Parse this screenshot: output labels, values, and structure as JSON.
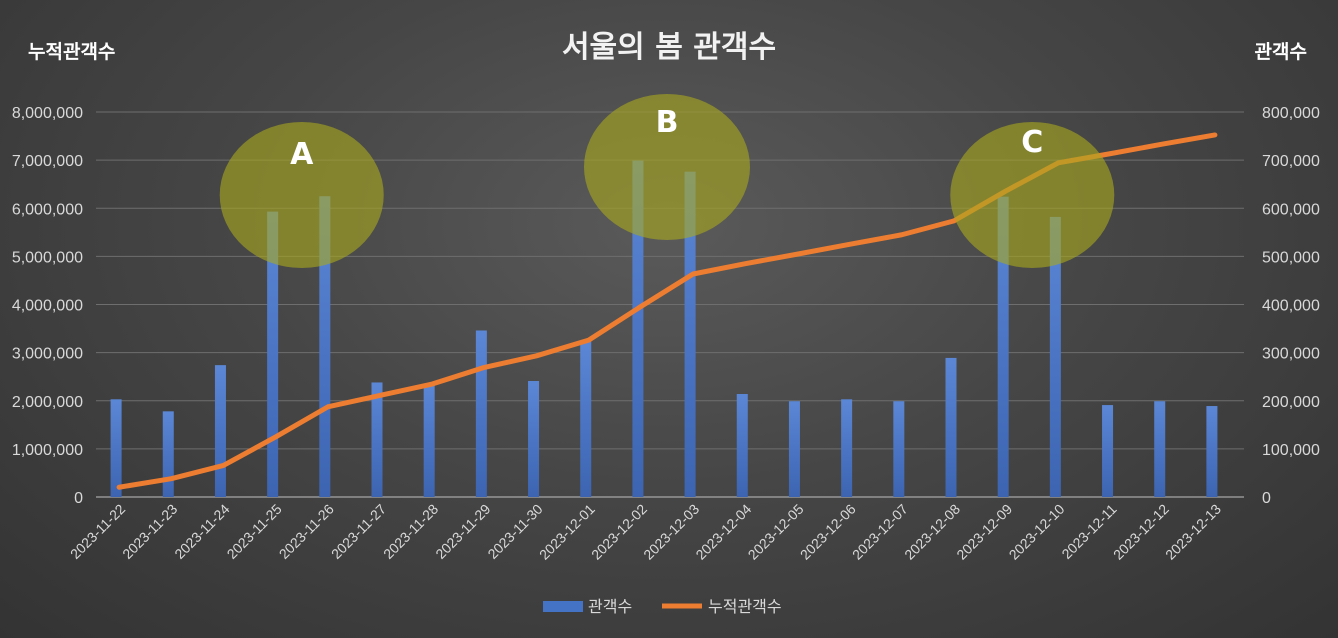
{
  "chart_data": {
    "type": "bar",
    "title": "서울의 봄 관객수",
    "y1_label": "누적관객수",
    "y2_label": "관객수",
    "y1_lim": [
      0,
      8000000
    ],
    "y2_lim": [
      0,
      800000
    ],
    "y1_ticks": [
      "0",
      "1,000,000",
      "2,000,000",
      "3,000,000",
      "4,000,000",
      "5,000,000",
      "6,000,000",
      "7,000,000",
      "8,000,000"
    ],
    "y2_ticks": [
      "0",
      "100,000",
      "200,000",
      "300,000",
      "400,000",
      "500,000",
      "600,000",
      "700,000",
      "800,000"
    ],
    "categories": [
      "2023-11-22",
      "2023-11-23",
      "2023-11-24",
      "2023-11-25",
      "2023-11-26",
      "2023-11-27",
      "2023-11-28",
      "2023-11-29",
      "2023-11-30",
      "2023-12-01",
      "2023-12-02",
      "2023-12-03",
      "2023-12-04",
      "2023-12-05",
      "2023-12-06",
      "2023-12-07",
      "2023-12-08",
      "2023-12-09",
      "2023-12-10",
      "2023-12-11",
      "2023-12-12",
      "2023-12-13"
    ],
    "series": [
      {
        "name": "관객수",
        "kind": "bar",
        "axis": "secondary",
        "color": "#4472c4",
        "values": [
          203000,
          178000,
          274000,
          593000,
          625000,
          238000,
          236000,
          346000,
          241000,
          325000,
          699000,
          676000,
          214000,
          199000,
          203000,
          199000,
          289000,
          624000,
          582000,
          191000,
          199000,
          189000
        ]
      },
      {
        "name": "누적관객수",
        "kind": "line",
        "axis": "primary",
        "color": "#ed7d31",
        "values": [
          203000,
          381000,
          655000,
          1248000,
          1873000,
          2111000,
          2347000,
          2693000,
          2934000,
          3259000,
          3958000,
          4634000,
          4848000,
          5047000,
          5250000,
          5449000,
          5738000,
          6362000,
          6944000,
          7135000,
          7334000,
          7523000
        ]
      }
    ],
    "highlights": [
      {
        "label": "A",
        "color": "#a8a81e"
      },
      {
        "label": "B",
        "color": "#a8a81e"
      },
      {
        "label": "C",
        "color": "#a8a81e"
      }
    ],
    "legend_position": "bottom",
    "grid": true
  }
}
